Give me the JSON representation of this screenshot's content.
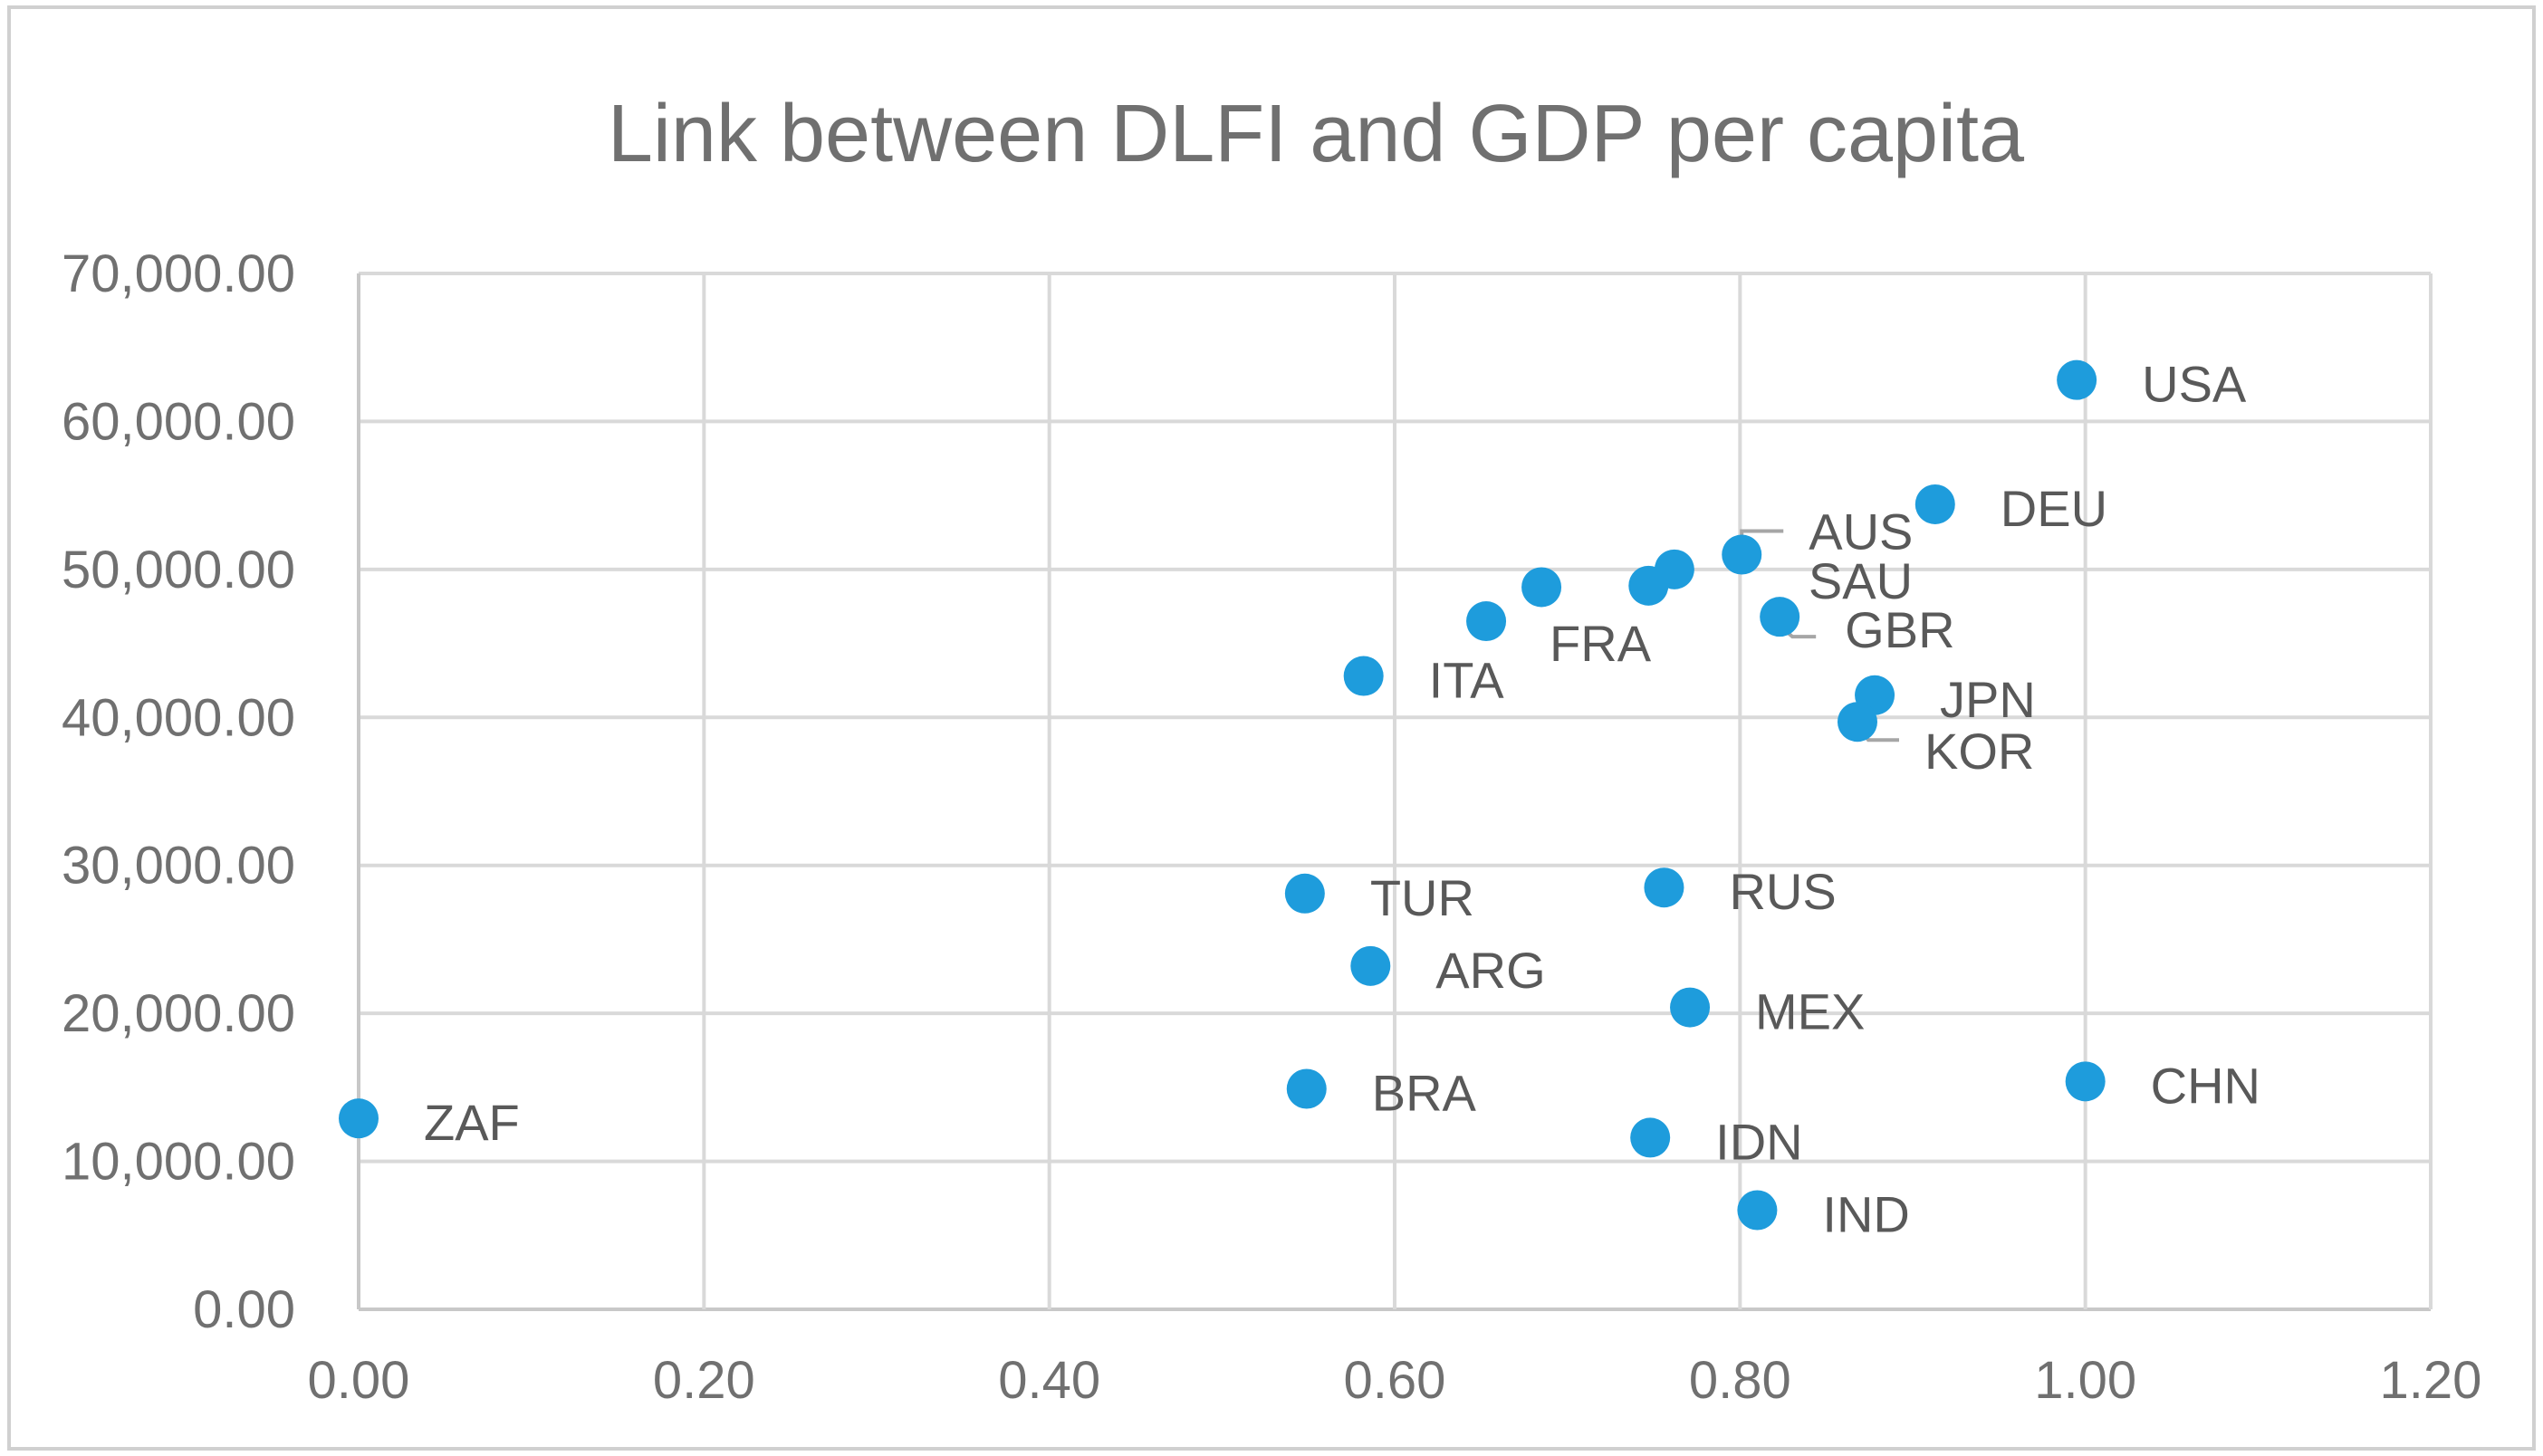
{
  "colors": {
    "marker": "#1e9cdc",
    "grid": "#d9d9d9",
    "text": "#707070",
    "label": "#595959",
    "border": "#d0d0d0"
  },
  "chart_data": {
    "type": "scatter",
    "title": "Link between DLFI and GDP per capita",
    "xlabel": "",
    "ylabel": "",
    "xlim": [
      0,
      1.2
    ],
    "ylim": [
      0,
      70000
    ],
    "x_ticks": [
      0,
      0.2,
      0.4,
      0.6,
      0.8,
      1.0,
      1.2
    ],
    "x_tick_labels": [
      "0.00",
      "0.20",
      "0.40",
      "0.60",
      "0.80",
      "1.00",
      "1.20"
    ],
    "y_ticks": [
      0,
      10000,
      20000,
      30000,
      40000,
      50000,
      60000,
      70000
    ],
    "y_tick_labels": [
      "0.00",
      "10,000.00",
      "20,000.00",
      "30,000.00",
      "40,000.00",
      "50,000.00",
      "60,000.00",
      "70,000.00"
    ],
    "grid": true,
    "legend": "none",
    "points": [
      {
        "label": "USA",
        "x": 0.995,
        "y": 62800
      },
      {
        "label": "DEU",
        "x": 0.913,
        "y": 54400
      },
      {
        "label": "AUS",
        "x": 0.801,
        "y": 51000
      },
      {
        "label": "SAU",
        "x": 0.762,
        "y": 50000
      },
      {
        "label": "",
        "x": 0.747,
        "y": 48900
      },
      {
        "label": "",
        "x": 0.685,
        "y": 48800
      },
      {
        "label": "FRA",
        "x": 0.653,
        "y": 46500
      },
      {
        "label": "GBR",
        "x": 0.823,
        "y": 46800
      },
      {
        "label": "ITA",
        "x": 0.582,
        "y": 42800
      },
      {
        "label": "JPN",
        "x": 0.878,
        "y": 41500
      },
      {
        "label": "KOR",
        "x": 0.868,
        "y": 39700
      },
      {
        "label": "TUR",
        "x": 0.548,
        "y": 28100
      },
      {
        "label": "RUS",
        "x": 0.756,
        "y": 28500
      },
      {
        "label": "ARG",
        "x": 0.586,
        "y": 23200
      },
      {
        "label": "MEX",
        "x": 0.771,
        "y": 20400
      },
      {
        "label": "BRA",
        "x": 0.549,
        "y": 14900
      },
      {
        "label": "CHN",
        "x": 1.0,
        "y": 15400
      },
      {
        "label": "ZAF",
        "x": 0.0,
        "y": 12900
      },
      {
        "label": "IDN",
        "x": 0.748,
        "y": 11600
      },
      {
        "label": "IND",
        "x": 0.81,
        "y": 6700
      }
    ]
  }
}
